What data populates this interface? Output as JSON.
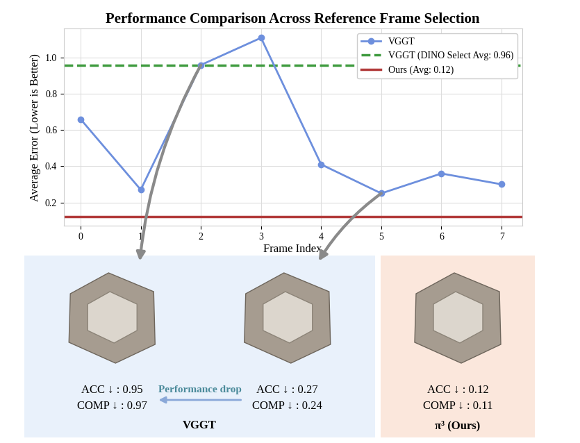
{
  "chart_data": {
    "type": "line",
    "title": "Performance Comparison Across Reference Frame Selection",
    "x_label": "Frame Index",
    "y_label": "Average Error (Lower is Better)",
    "x": [
      0,
      1,
      2,
      3,
      4,
      5,
      6,
      7
    ],
    "xlim": [
      -0.28,
      7.34
    ],
    "xticks": [
      0,
      1,
      2,
      3,
      4,
      5,
      6,
      7
    ],
    "ylim": [
      0.07,
      1.16
    ],
    "yticks": [
      0.2,
      0.4,
      0.6,
      0.8,
      1.0
    ],
    "grid": true,
    "legend": "upper right",
    "series": [
      {
        "name": "VGGT",
        "color": "#6d8fdd",
        "marker": "o",
        "line_style": "solid",
        "values": [
          0.66,
          0.27,
          0.96,
          1.11,
          0.41,
          0.25,
          0.36,
          0.3
        ]
      }
    ],
    "reference_lines": [
      {
        "name": "VGGT (DINO Select Avg: 0.96)",
        "value": 0.96,
        "color": "#3f9b3f",
        "line_style": "dashed"
      },
      {
        "name": "Ours (Avg: 0.12)",
        "value": 0.12,
        "color": "#b23b3b",
        "line_style": "solid"
      }
    ]
  },
  "panels": [
    {
      "label": "VGGT",
      "color": "#e9f1fb",
      "transition": "Performance drop",
      "results": [
        {
          "from_frame": 2,
          "lines": [
            "ACC ↓ : 0.95",
            "COMP ↓ : 0.97"
          ]
        },
        {
          "from_frame": 5,
          "lines": [
            "ACC ↓ : 0.27",
            "COMP ↓ : 0.24"
          ]
        }
      ]
    },
    {
      "label": "π³ (Ours)",
      "color": "#fbe7dc",
      "results": [
        {
          "lines": [
            "ACC ↓ : 0.12",
            "COMP ↓ : 0.11"
          ]
        }
      ]
    }
  ]
}
